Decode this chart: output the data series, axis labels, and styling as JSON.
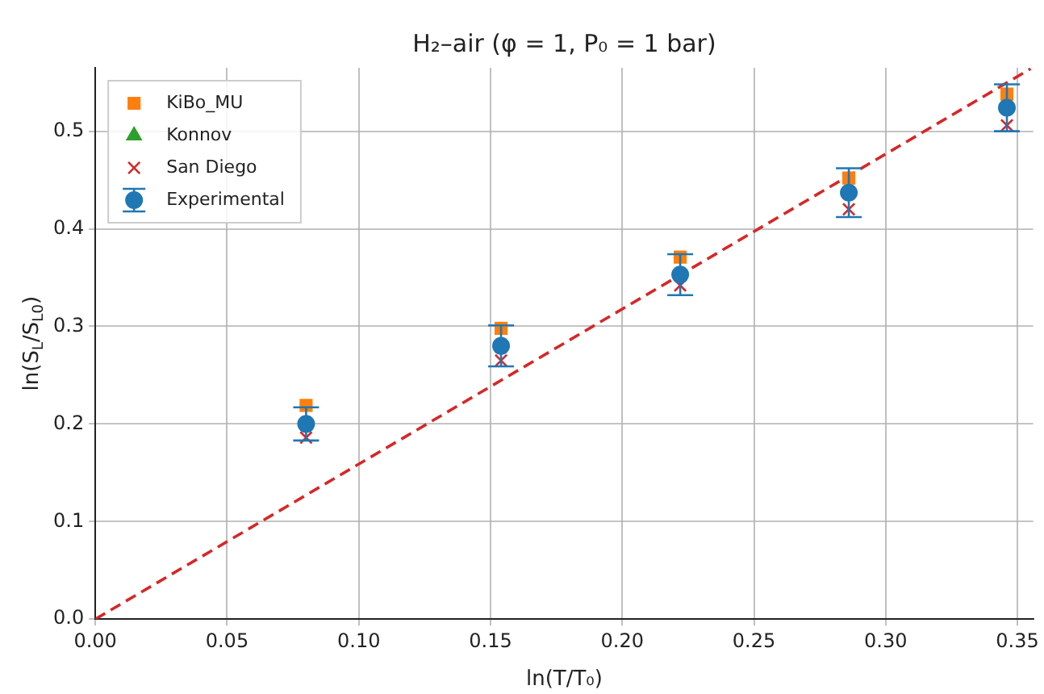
{
  "chart_data": {
    "type": "scatter",
    "title": "H₂–air (φ = 1, P₀ = 1 bar)",
    "xlabel": "ln(T/T₀)",
    "ylabel": "ln(S$_{L}$/S$_{L0}$)",
    "x": [
      0.08,
      0.154,
      0.222,
      0.286,
      0.346
    ],
    "series": [
      {
        "name": "KiBo_MU",
        "color": "#ff7f0e",
        "marker": "square",
        "values": [
          0.219,
          0.298,
          0.371,
          0.452,
          0.538
        ]
      },
      {
        "name": "Konnov",
        "color": "#2ca02c",
        "marker": "triangle",
        "values": [
          null,
          null,
          null,
          null,
          null
        ]
      },
      {
        "name": "San Diego",
        "color": "#d62728",
        "marker": "cross",
        "values": [
          0.186,
          0.265,
          0.342,
          0.42,
          0.506
        ]
      },
      {
        "name": "Experimental",
        "color": "#1f77b4",
        "marker": "circle",
        "values": [
          0.2,
          0.28,
          0.353,
          0.437,
          0.524
        ],
        "errors": [
          0.017,
          0.021,
          0.021,
          0.025,
          0.024
        ]
      },
      {
        "type": "line",
        "color": "#d62728",
        "marker": "none",
        "line_style": "dashed",
        "x": [
          0,
          0.355
        ],
        "values": [
          0,
          0.564
        ]
      }
    ],
    "xlim": [
      0,
      0.356
    ],
    "ylim": [
      0,
      0.565
    ],
    "xticks": [
      {
        "value": 0,
        "label": "0.00"
      },
      0.05,
      {
        "value": 0.1,
        "label": "0.10"
      },
      0.15,
      {
        "value": 0.2,
        "label": "0.20"
      },
      0.25,
      {
        "value": 0.3,
        "label": "0.30"
      },
      0.35
    ],
    "yticks": [
      {
        "value": 0,
        "label": "0.0"
      },
      0.1,
      0.2,
      0.3,
      0.4,
      0.5
    ],
    "grid": true,
    "legend": "top left"
  }
}
